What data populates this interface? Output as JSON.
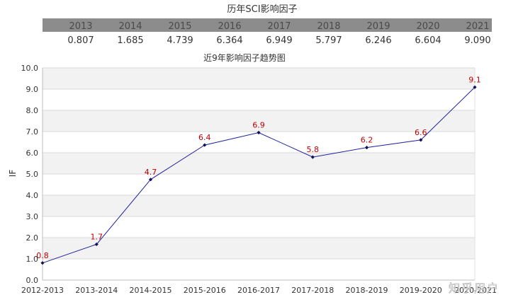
{
  "table": {
    "title": "历年SCI影响因子",
    "years": [
      "2013",
      "2014",
      "2015",
      "2016",
      "2017",
      "2018",
      "2019",
      "2020",
      "2021"
    ],
    "values": [
      "0.807",
      "1.685",
      "4.739",
      "6.364",
      "6.949",
      "5.797",
      "6.246",
      "6.604",
      "9.090"
    ],
    "header_bg": "#8c8c8c"
  },
  "chart_data": {
    "type": "line",
    "title": "近9年影响因子趋势图",
    "categories": [
      "2012-2013",
      "2013-2014",
      "2014-2015",
      "2015-2016",
      "2016-2017",
      "2017-2018",
      "2018-2019",
      "2019-2020",
      "2020-2021"
    ],
    "values": [
      0.807,
      1.685,
      4.739,
      6.364,
      6.949,
      5.797,
      6.246,
      6.604,
      9.09
    ],
    "data_labels": [
      "0.8",
      "1.7",
      "4.7",
      "6.4",
      "6.9",
      "5.8",
      "6.2",
      "6.6",
      "9.1"
    ],
    "xlabel": "",
    "ylabel": "IF",
    "ylim": [
      0,
      10
    ],
    "yticks": [
      "0.0",
      "1.0",
      "2.0",
      "3.0",
      "4.0",
      "5.0",
      "6.0",
      "7.0",
      "8.0",
      "9.0",
      "10.0"
    ],
    "grid": true,
    "line_color": "#1f1fa0",
    "label_color": "#c00000",
    "band_color": "#f2f2f2"
  },
  "watermark": {
    "text": "知乎用户"
  }
}
